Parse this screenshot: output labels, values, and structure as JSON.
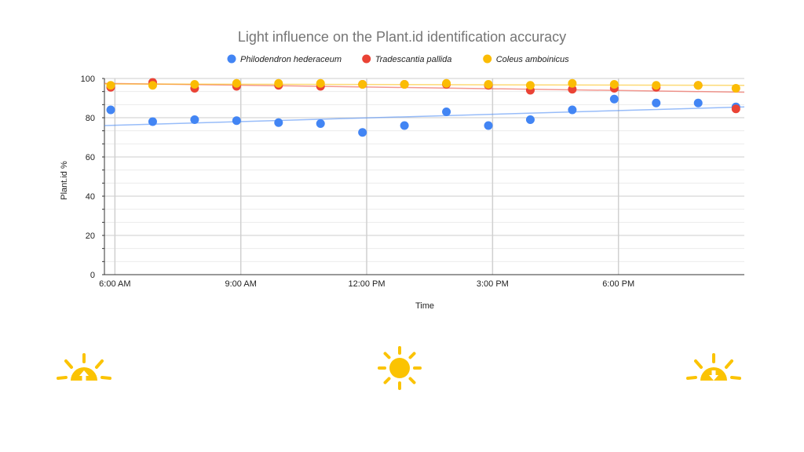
{
  "chart_data": {
    "type": "scatter",
    "title": "Light influence on the Plant.id identification accuracy",
    "xlabel": "Time",
    "ylabel": "Plant.id %",
    "ylim": [
      0,
      100
    ],
    "yticks": [
      "0",
      "20",
      "40",
      "60",
      "80",
      "100"
    ],
    "xticks": [
      "6:00 AM",
      "9:00 AM",
      "12:00 PM",
      "3:00 PM",
      "6:00 PM"
    ],
    "xtick_hours": [
      6,
      9,
      12,
      15,
      18
    ],
    "xlim_hours": [
      5.75,
      21.0
    ],
    "grid": true,
    "legend_position": "top",
    "trendlines": true,
    "x_hours": [
      5.9,
      6.9,
      7.9,
      8.9,
      9.9,
      10.9,
      11.9,
      12.9,
      13.9,
      14.9,
      15.9,
      16.9,
      17.9,
      18.9,
      19.9,
      20.8
    ],
    "series": [
      {
        "name": "Philodendron hederaceum",
        "color": "#4285f4",
        "values": [
          84,
          78,
          79,
          78.5,
          77.5,
          77,
          72.5,
          76,
          83,
          76,
          79,
          84,
          89.5,
          87.5,
          87.5,
          85.5
        ],
        "trend": [
          76,
          85.5
        ]
      },
      {
        "name": "Tradescantia pallida",
        "color": "#ea4335",
        "values": [
          95.5,
          98,
          95,
          96,
          96.5,
          96,
          97,
          97,
          97,
          96.5,
          94,
          94.5,
          95,
          95.5,
          96.5,
          84.5
        ],
        "trend": [
          97.5,
          93
        ]
      },
      {
        "name": "Coleus amboinicus",
        "color": "#fbbc04",
        "values": [
          96.5,
          96.5,
          97,
          97.5,
          97.5,
          97.5,
          97,
          97,
          97.5,
          97,
          96.5,
          97.5,
          97,
          96.5,
          96.5,
          95
        ],
        "trend": [
          97.2,
          96.5
        ]
      }
    ]
  },
  "icons": {
    "left": "sunrise-icon",
    "center": "sun-icon",
    "right": "sunset-icon",
    "color": "#fbc302"
  }
}
